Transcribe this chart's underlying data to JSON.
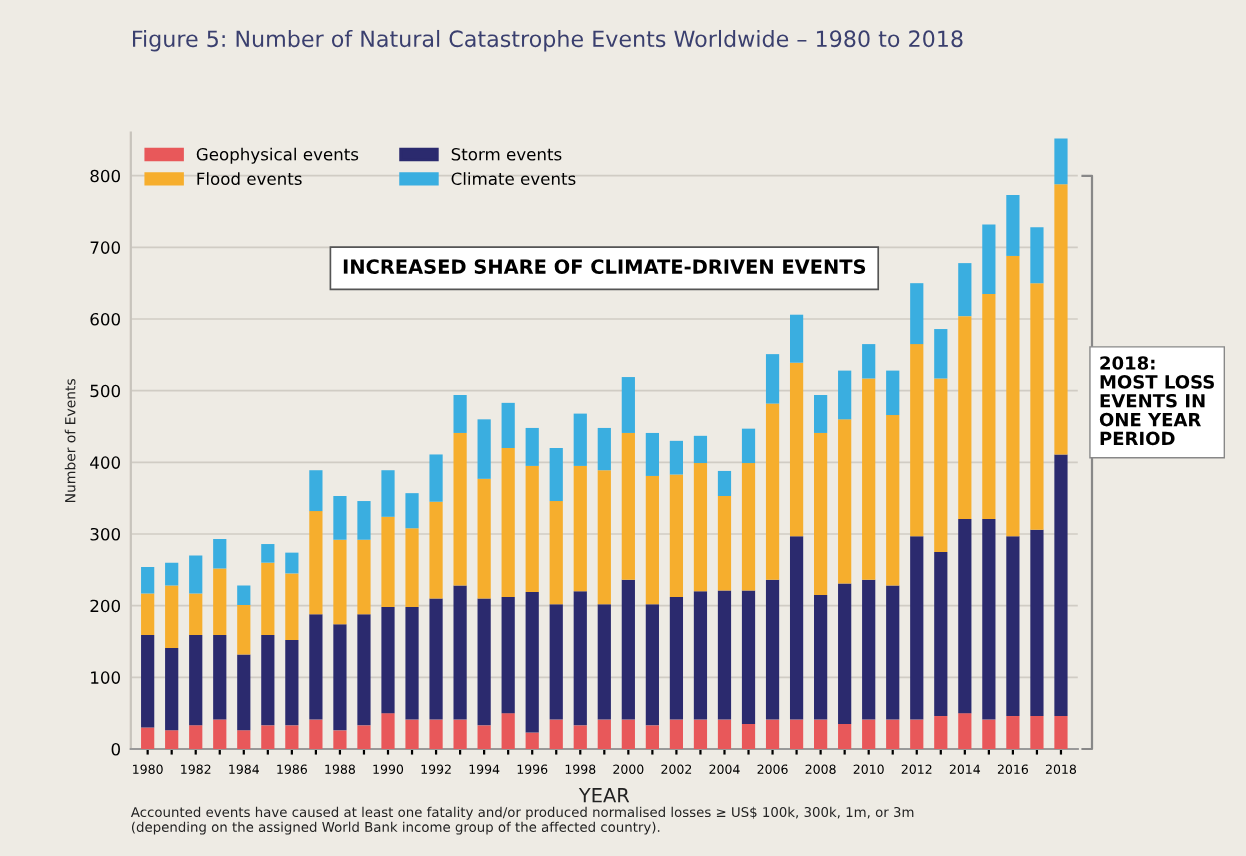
{
  "chart_data": {
    "type": "bar",
    "stacked": true,
    "title": "Figure 5: Number of Natural Catastrophe Events Worldwide – 1980 to 2018",
    "xlabel": "YEAR",
    "ylabel": "Number of Events",
    "categories": [
      "1980",
      null,
      "1982",
      null,
      "1984",
      null,
      "1986",
      null,
      "1988",
      null,
      "1990",
      null,
      "1992",
      null,
      "1994",
      null,
      "1996",
      null,
      "1998",
      null,
      "2000",
      null,
      "2002",
      null,
      "2004",
      null,
      "2006",
      null,
      "2008",
      null,
      "2010",
      null,
      "2012",
      null,
      "2014",
      null,
      "2016",
      null,
      "2018"
    ],
    "series": [
      {
        "name": "Geophysical events",
        "color": "#e8585a",
        "values": [
          30,
          26,
          33,
          41,
          26,
          33,
          33,
          41,
          26,
          33,
          50,
          41,
          41,
          41,
          33,
          50,
          23,
          41,
          33,
          41,
          41,
          33,
          41,
          41,
          41,
          35,
          41,
          41,
          41,
          35,
          41,
          41,
          41,
          46,
          50,
          41,
          46,
          46,
          46
        ]
      },
      {
        "name": "Storm events",
        "color": "#2b2a6e",
        "values": [
          129,
          115,
          126,
          118,
          106,
          126,
          119,
          147,
          148,
          155,
          148,
          157,
          169,
          187,
          177,
          162,
          196,
          161,
          187,
          161,
          195,
          169,
          171,
          179,
          180,
          186,
          195,
          256,
          174,
          196,
          195,
          187,
          256,
          229,
          271,
          280,
          251,
          260,
          365
        ]
      },
      {
        "name": "Flood events",
        "color": "#f6ae2d",
        "values": [
          58,
          87,
          58,
          93,
          69,
          101,
          93,
          144,
          118,
          104,
          126,
          110,
          135,
          213,
          167,
          208,
          176,
          144,
          175,
          187,
          205,
          179,
          171,
          179,
          132,
          178,
          246,
          242,
          226,
          229,
          281,
          238,
          268,
          242,
          283,
          314,
          391,
          344,
          377
        ]
      },
      {
        "name": "Climate events",
        "color": "#3aaee0",
        "values": [
          37,
          32,
          53,
          41,
          27,
          26,
          29,
          57,
          61,
          54,
          65,
          49,
          66,
          53,
          83,
          63,
          53,
          74,
          73,
          59,
          78,
          60,
          47,
          38,
          35,
          48,
          69,
          67,
          53,
          68,
          48,
          62,
          85,
          69,
          74,
          97,
          85,
          78,
          64
        ]
      }
    ],
    "ylim": [
      0,
      860
    ],
    "yticks": [
      0,
      100,
      200,
      300,
      400,
      500,
      600,
      700,
      800
    ],
    "grid": "y",
    "legend": "top left",
    "annotations": [
      "INCREASED SHARE OF CLIMATE-DRIVEN EVENTS",
      "2018:\nMOST LOSS\nEVENTS IN\nONE YEAR\nPERIOD",
      "Accounted events have caused at least one fatality and/or produced normalised losses ≥ US$ 100k, 300k, 1m, or 3m\n(depending on the assigned World Bank income group of the affected country)."
    ]
  }
}
